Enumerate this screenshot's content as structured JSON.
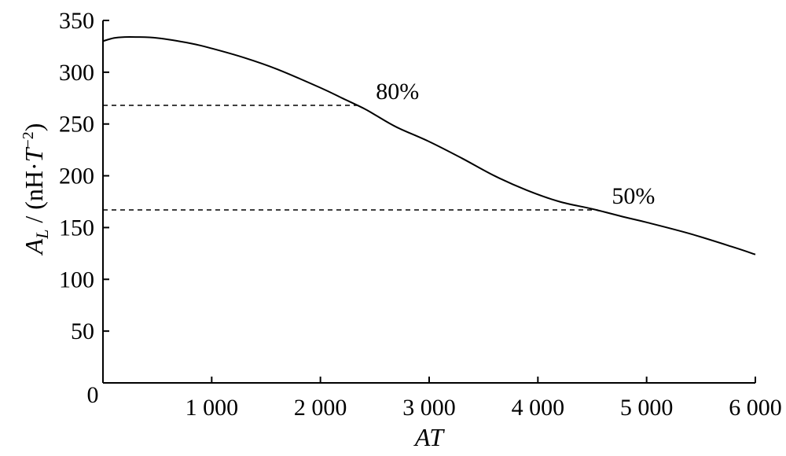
{
  "chart_data": {
    "type": "line",
    "title": "",
    "xlabel": "AT",
    "ylabel": {
      "base": "A",
      "sub": "L",
      "mid": " / (nH·",
      "italic": "T",
      "sup": "−2",
      "end": ")"
    },
    "xlim": [
      0,
      6000
    ],
    "ylim": [
      0,
      350
    ],
    "x_ticks": [
      1000,
      2000,
      3000,
      4000,
      5000,
      6000
    ],
    "x_tick_labels": [
      "1 000",
      "2 000",
      "3 000",
      "4 000",
      "5 000",
      "6 000"
    ],
    "origin_label": "0",
    "y_ticks": [
      50,
      100,
      150,
      200,
      250,
      300,
      350
    ],
    "y_tick_labels": [
      "50",
      "100",
      "150",
      "200",
      "250",
      "300",
      "350"
    ],
    "grid": false,
    "series": [
      {
        "x": [
          0,
          100,
          200,
          300,
          500,
          800,
          1000,
          1300,
          1600,
          2000,
          2200,
          2400,
          2500,
          2700,
          3000,
          3300,
          3600,
          3900,
          4200,
          4500,
          4800,
          5000,
          5400,
          5800,
          6000
        ],
        "y": [
          330,
          333,
          334,
          334,
          333,
          328,
          323,
          314,
          303,
          285,
          275,
          265,
          259,
          247,
          233,
          217,
          200,
          186,
          175,
          168,
          160,
          155,
          144,
          131,
          124
        ]
      }
    ],
    "reference_lines": [
      {
        "y": 268,
        "x_end": 2380,
        "label": "80%"
      },
      {
        "y": 167,
        "x_end": 4550,
        "label": "50%"
      }
    ]
  }
}
